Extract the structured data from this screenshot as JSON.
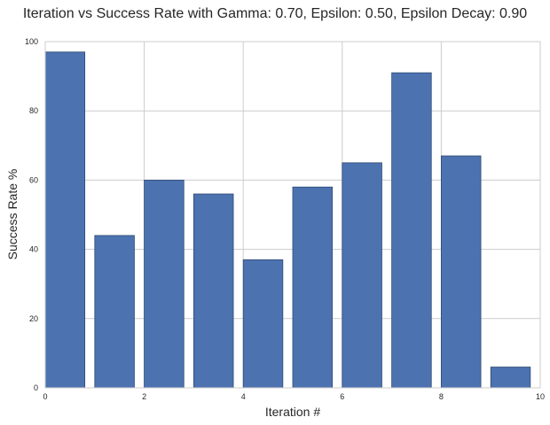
{
  "chart_data": {
    "type": "bar",
    "title": "Iteration vs Success Rate with Gamma: 0.70, Epsilon: 0.50, Epsilon Decay: 0.90",
    "xlabel": "Iteration #",
    "ylabel": "Success Rate %",
    "x": [
      0,
      1,
      2,
      3,
      4,
      5,
      6,
      7,
      8,
      9
    ],
    "values": [
      97,
      44,
      60,
      56,
      37,
      58,
      65,
      91,
      67,
      6
    ],
    "bar_width": 0.8,
    "xlim": [
      0,
      10
    ],
    "ylim": [
      0,
      100
    ],
    "xticks": [
      0,
      2,
      4,
      6,
      8,
      10
    ],
    "yticks": [
      0,
      20,
      40,
      60,
      80,
      100
    ],
    "grid": true,
    "bar_color": "#4c72b0"
  }
}
